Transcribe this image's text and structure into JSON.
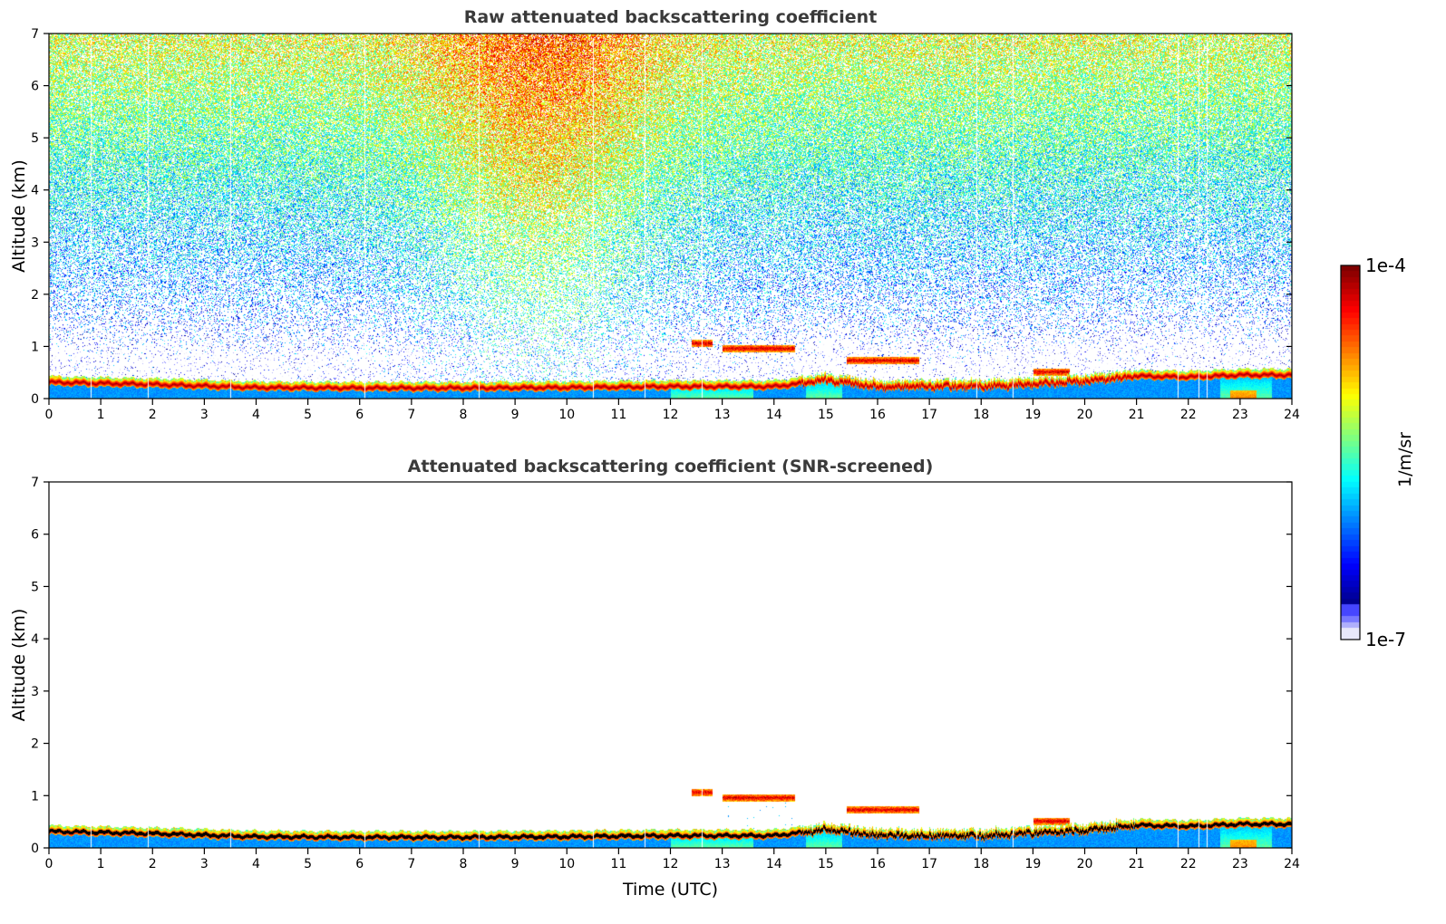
{
  "chart_data": [
    {
      "type": "heatmap",
      "title": "Raw attenuated backscattering coefficient",
      "xlabel": "",
      "ylabel": "Altitude (km)",
      "xlim": [
        0,
        24
      ],
      "ylim": [
        0,
        7
      ],
      "xticks": [
        "0",
        "1",
        "2",
        "3",
        "4",
        "5",
        "6",
        "7",
        "8",
        "9",
        "10",
        "11",
        "12",
        "13",
        "14",
        "15",
        "16",
        "17",
        "18",
        "19",
        "20",
        "21",
        "22",
        "23",
        "24"
      ],
      "yticks": [
        "0",
        "1",
        "2",
        "3",
        "4",
        "5",
        "6",
        "7"
      ],
      "screened": false
    },
    {
      "type": "heatmap",
      "title": "Attenuated backscattering coefficient (SNR-screened)",
      "xlabel": "Time (UTC)",
      "ylabel": "Altitude (km)",
      "xlim": [
        0,
        24
      ],
      "ylim": [
        0,
        7
      ],
      "xticks": [
        "0",
        "1",
        "2",
        "3",
        "4",
        "5",
        "6",
        "7",
        "8",
        "9",
        "10",
        "11",
        "12",
        "13",
        "14",
        "15",
        "16",
        "17",
        "18",
        "19",
        "20",
        "21",
        "22",
        "23",
        "24"
      ],
      "yticks": [
        "0",
        "1",
        "2",
        "3",
        "4",
        "5",
        "6",
        "7"
      ],
      "screened": true
    }
  ],
  "layer_model": {
    "boundary_layer_top_km": [
      [
        0,
        0.38
      ],
      [
        2,
        0.34
      ],
      [
        4,
        0.28
      ],
      [
        6,
        0.27
      ],
      [
        8,
        0.27
      ],
      [
        10,
        0.28
      ],
      [
        12,
        0.3
      ],
      [
        14,
        0.3
      ],
      [
        15,
        0.42
      ],
      [
        16,
        0.3
      ],
      [
        18,
        0.3
      ],
      [
        19,
        0.35
      ],
      [
        20,
        0.4
      ],
      [
        21,
        0.5
      ],
      [
        22,
        0.48
      ],
      [
        23,
        0.52
      ],
      [
        24,
        0.52
      ]
    ],
    "clouds": [
      {
        "t0": 12.4,
        "t1": 12.8,
        "alt_km": 1.05
      },
      {
        "t0": 13.0,
        "t1": 14.4,
        "alt_km": 0.95
      },
      {
        "t0": 15.4,
        "t1": 16.8,
        "alt_km": 0.72
      },
      {
        "t0": 19.0,
        "t1": 19.7,
        "alt_km": 0.5
      }
    ],
    "missing_profiles_utc": [
      0.8,
      1.9,
      3.5,
      6.1,
      8.3,
      10.5,
      11.5,
      12.6,
      17.9,
      18.6,
      21.8,
      22.2,
      22.35
    ]
  },
  "colorbar": {
    "max_label": "1e-4",
    "min_label": "1e-7",
    "unit": "1/m/sr",
    "scale": "log",
    "colormap": "jet"
  }
}
